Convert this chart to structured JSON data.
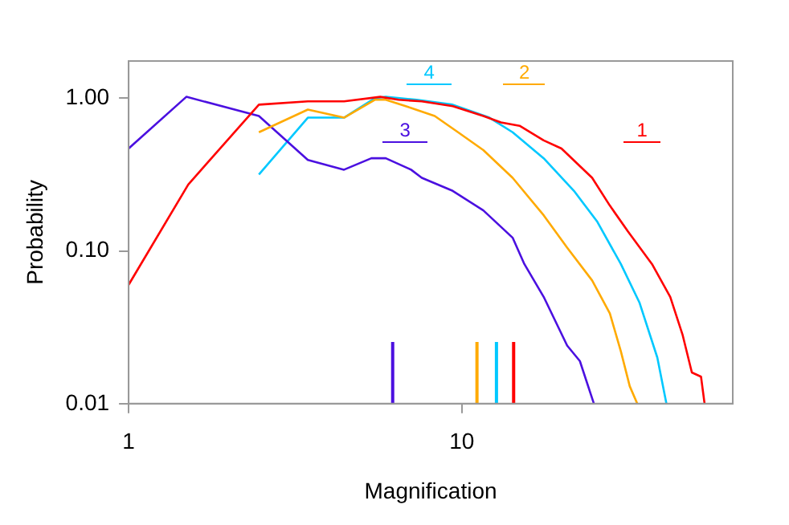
{
  "chart_data": {
    "type": "line",
    "xlabel": "Magnification",
    "ylabel": "Probability",
    "log": "xy",
    "xlim": [
      1,
      65
    ],
    "xticks": [
      1,
      10
    ],
    "ylim": [
      0.01,
      1.75
    ],
    "yticks": [
      {
        "value": 0.01,
        "label": "0.01"
      },
      {
        "value": 0.1,
        "label": "0.10"
      },
      {
        "value": 1,
        "label": "1.00"
      }
    ],
    "grid": false,
    "legend": "top right",
    "marker": "none",
    "line_style": "solid",
    "series": [
      {
        "name": "1",
        "color": "#ff0000",
        "x": [
          1.0,
          1.51,
          2.46,
          3.45,
          4.43,
          5.69,
          6.45,
          7.58,
          9.39,
          11.6,
          13.1,
          14.9,
          17.6,
          19.9,
          24.6,
          27.8,
          31.5,
          37.2,
          42.2,
          46.0,
          49.0,
          52.2,
          53.5
        ],
        "values": [
          0.06,
          0.272,
          0.906,
          0.952,
          0.952,
          1.02,
          0.976,
          0.952,
          0.885,
          0.764,
          0.693,
          0.659,
          0.529,
          0.468,
          0.301,
          0.198,
          0.134,
          0.082,
          0.05,
          0.028,
          0.016,
          0.015,
          0.01
        ]
      },
      {
        "name": "2",
        "color": "#ffaa00",
        "x": [
          2.46,
          3.45,
          4.43,
          5.48,
          5.91,
          7.04,
          8.29,
          9.74,
          11.6,
          14.2,
          17.6,
          20.7,
          24.6,
          27.8,
          30.0,
          31.9,
          33.6
        ],
        "values": [
          0.598,
          0.842,
          0.745,
          0.976,
          0.976,
          0.863,
          0.764,
          0.598,
          0.457,
          0.301,
          0.171,
          0.105,
          0.064,
          0.039,
          0.022,
          0.013,
          0.01
        ]
      },
      {
        "name": "3",
        "color": "#4b10e0",
        "x": [
          1.0,
          1.49,
          2.46,
          3.45,
          4.43,
          5.35,
          5.91,
          7.04,
          7.58,
          9.39,
          11.6,
          14.2,
          15.4,
          17.6,
          20.7,
          22.6,
          24.9
        ],
        "values": [
          0.468,
          1.02,
          0.764,
          0.394,
          0.34,
          0.404,
          0.404,
          0.34,
          0.301,
          0.247,
          0.184,
          0.122,
          0.082,
          0.05,
          0.024,
          0.019,
          0.01
        ]
      },
      {
        "name": "4",
        "color": "#00c8ff",
        "x": [
          2.46,
          3.45,
          4.43,
          5.48,
          5.91,
          7.32,
          9.39,
          12.1,
          14.2,
          17.6,
          21.7,
          25.5,
          30.0,
          34.1,
          38.6,
          41.1
        ],
        "values": [
          0.316,
          0.745,
          0.745,
          1.0,
          1.02,
          0.976,
          0.906,
          0.745,
          0.598,
          0.404,
          0.247,
          0.155,
          0.082,
          0.046,
          0.02,
          0.01
        ]
      }
    ],
    "ref_lines": [
      {
        "axis": "x",
        "value": 6.2,
        "color": "#4b10e0"
      },
      {
        "axis": "x",
        "value": 11.1,
        "color": "#ffaa00"
      },
      {
        "axis": "x",
        "value": 12.7,
        "color": "#00c8ff"
      },
      {
        "axis": "x",
        "value": 14.3,
        "color": "#ff0000"
      }
    ]
  }
}
